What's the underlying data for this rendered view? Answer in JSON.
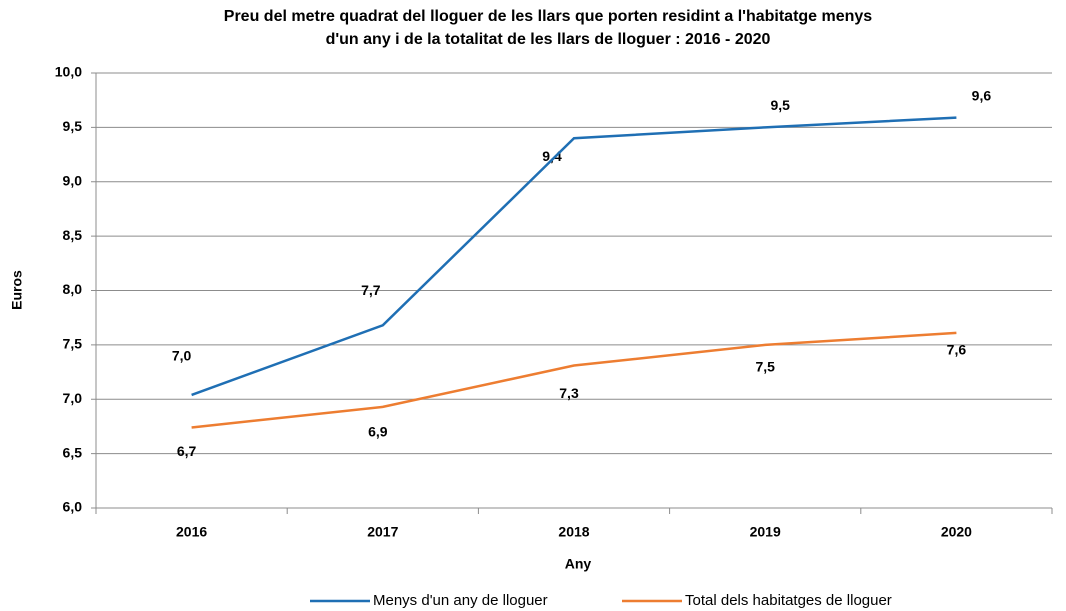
{
  "chart_data": {
    "type": "line",
    "title": [
      "Preu del metre quadrat del lloguer de les llars que porten residint a l'habitatge menys",
      "d'un any i de la totalitat de les llars de lloguer : 2016 - 2020"
    ],
    "x_label": "Any",
    "y_label": "Euros",
    "categories": [
      "2016",
      "2017",
      "2018",
      "2019",
      "2020"
    ],
    "series": [
      {
        "name": "Menys d'un any de lloguer",
        "color": "#1f6fb4",
        "values": [
          7.04,
          7.68,
          9.4,
          9.5,
          9.59
        ],
        "value_labels": [
          "7,0",
          "7,7",
          "9,4",
          "9,5",
          "9,6"
        ]
      },
      {
        "name": "Total dels habitatges de lloguer",
        "color": "#ed7d31",
        "values": [
          6.74,
          6.93,
          7.31,
          7.5,
          7.61
        ],
        "value_labels": [
          "6,7",
          "6,9",
          "7,3",
          "7,5",
          "7,6"
        ]
      }
    ],
    "ylim": [
      6,
      10
    ],
    "yticks": [
      {
        "value": 6,
        "label": "6,0"
      },
      {
        "value": 6.5,
        "label": "6,5"
      },
      {
        "value": 7,
        "label": "7,0"
      },
      {
        "value": 7.5,
        "label": "7,5"
      },
      {
        "value": 8,
        "label": "8,0"
      },
      {
        "value": 8.5,
        "label": "8,5"
      },
      {
        "value": 9,
        "label": "9,0"
      },
      {
        "value": 9.5,
        "label": "9,5"
      },
      {
        "value": 10,
        "label": "10,0"
      }
    ],
    "grid": true,
    "legend": "bottom"
  }
}
